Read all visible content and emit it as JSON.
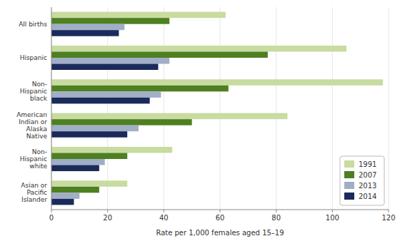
{
  "chart_data": {
    "type": "bar",
    "orientation": "horizontal",
    "categories": [
      "All births",
      "Hispanic",
      "Non-\nHispanic\nblack",
      "American\nIndian or\nAlaska\nNative",
      "Non-\nHispanic\nwhite",
      "Asian or\nPacific\nIslander"
    ],
    "series": [
      {
        "name": "1991",
        "color": "#c8dba0",
        "values": [
          62,
          105,
          118,
          84,
          43,
          27
        ]
      },
      {
        "name": "2007",
        "color": "#4e7f20",
        "values": [
          42,
          77,
          63,
          50,
          27,
          17
        ]
      },
      {
        "name": "2013",
        "color": "#a0aec8",
        "values": [
          26,
          42,
          39,
          31,
          19,
          10
        ]
      },
      {
        "name": "2014",
        "color": "#1a2a5a",
        "values": [
          24,
          38,
          35,
          27,
          17,
          8
        ]
      }
    ],
    "xlabel": "Rate per 1,000 females aged 15–19",
    "xlim": [
      0,
      120
    ],
    "xticks": [
      0,
      20,
      40,
      60,
      80,
      100,
      120
    ],
    "grid": true,
    "legend": "lower right"
  }
}
